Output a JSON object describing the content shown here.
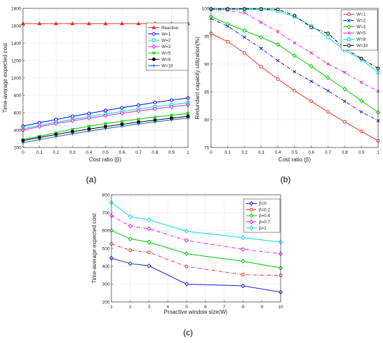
{
  "chart_data": [
    {
      "type": "line",
      "panel_label": "(a)",
      "title": "",
      "xlabel": "Cost ratio (β)",
      "ylabel": "Time-average expected cost",
      "xlim": [
        0,
        1
      ],
      "ylim": [
        200,
        1800
      ],
      "xticks": [
        0,
        0.1,
        0.2,
        0.3,
        0.4,
        0.5,
        0.6,
        0.7,
        0.8,
        0.9,
        1
      ],
      "xtick_labels": [
        "0",
        "0.1",
        "0.2",
        "0.3",
        "0.4",
        "0.5",
        "0.6",
        "0.7",
        "0.8",
        "0.9",
        "1"
      ],
      "yticks": [
        200,
        400,
        600,
        800,
        1000,
        1200,
        1400,
        1600,
        1800
      ],
      "ytick_labels": [
        "200",
        "400",
        "600",
        "800",
        "1000",
        "1200",
        "1400",
        "1600",
        "1800"
      ],
      "grid": true,
      "legend_position": "center-right",
      "x": [
        0,
        0.1,
        0.2,
        0.3,
        0.4,
        0.5,
        0.6,
        0.7,
        0.8,
        0.9,
        1
      ],
      "series": [
        {
          "name": "Reactive",
          "color": "#e8312a",
          "dash": "",
          "marker": "triangle",
          "values": [
            1625,
            1625,
            1625,
            1625,
            1625,
            1625,
            1625,
            1625,
            1625,
            1625,
            1625
          ]
        },
        {
          "name": "W=1",
          "color": "#0000ff",
          "dash": "",
          "marker": "circle",
          "values": [
            445,
            485,
            522,
            558,
            592,
            625,
            657,
            688,
            718,
            745,
            770
          ]
        },
        {
          "name": "W=2",
          "color": "#00d8d8",
          "dash": "",
          "marker": "square",
          "values": [
            415,
            455,
            490,
            523,
            555,
            585,
            614,
            642,
            668,
            692,
            715
          ]
        },
        {
          "name": "W=3",
          "color": "#e020e0",
          "dash": "",
          "marker": "diamond",
          "values": [
            400,
            440,
            475,
            507,
            537,
            566,
            593,
            620,
            645,
            668,
            690
          ]
        },
        {
          "name": "W=5",
          "color": "#00c800",
          "dash": "",
          "marker": "x",
          "values": [
            290,
            330,
            370,
            410,
            445,
            475,
            502,
            527,
            550,
            572,
            592
          ]
        },
        {
          "name": "W=8",
          "color": "#000000",
          "dash": "",
          "marker": "circle-filled",
          "values": [
            280,
            315,
            350,
            382,
            412,
            440,
            467,
            492,
            515,
            537,
            558
          ]
        },
        {
          "name": "W=10",
          "color": "#1060c0",
          "dash": "",
          "marker": "plus",
          "values": [
            255,
            290,
            325,
            357,
            388,
            417,
            444,
            470,
            494,
            517,
            538
          ]
        }
      ]
    },
    {
      "type": "line",
      "panel_label": "(b)",
      "title": "",
      "xlabel": "Cost ratio (β)",
      "ylabel": "Redundant capacity utilization(%)",
      "xlim": [
        0,
        1
      ],
      "ylim": [
        75,
        100
      ],
      "xticks": [
        0,
        0.1,
        0.2,
        0.3,
        0.4,
        0.5,
        0.6,
        0.7,
        0.8,
        0.9,
        1
      ],
      "xtick_labels": [
        "0",
        "0.1",
        "0.2",
        "0.3",
        "0.4",
        "0.5",
        "0.6",
        "0.7",
        "0.8",
        "0.9",
        "1"
      ],
      "yticks": [
        75,
        80,
        85,
        90,
        95,
        100
      ],
      "ytick_labels": [
        "75",
        "80",
        "85",
        "90",
        "95",
        "100"
      ],
      "grid": true,
      "legend_position": "top-right",
      "x": [
        0,
        0.1,
        0.2,
        0.3,
        0.4,
        0.5,
        0.6,
        0.7,
        0.8,
        0.9,
        1
      ],
      "series": [
        {
          "name": "W=1",
          "color": "#e8312a",
          "dash": "",
          "marker": "circle",
          "values": [
            95.5,
            94.0,
            92.0,
            89.5,
            87.3,
            85.2,
            83.3,
            81.4,
            79.6,
            77.9,
            76.2
          ]
        },
        {
          "name": "W=2",
          "color": "#1a1ad0",
          "dash": "5,2,1,2",
          "marker": "x",
          "values": [
            98.2,
            96.8,
            94.8,
            92.8,
            90.6,
            88.6,
            86.9,
            85.2,
            83.3,
            81.4,
            79.8
          ]
        },
        {
          "name": "W=3",
          "color": "#00c800",
          "dash": "",
          "marker": "diamond",
          "values": [
            98.5,
            97.2,
            96.0,
            94.8,
            93.5,
            91.5,
            89.6,
            87.5,
            85.5,
            83.4,
            81.3
          ]
        },
        {
          "name": "W=5",
          "color": "#e020e0",
          "dash": "5,2,1,2",
          "marker": "x",
          "values": [
            99.8,
            99.6,
            99.2,
            97.5,
            95.8,
            93.8,
            92.0,
            90.0,
            88.5,
            86.7,
            85.1
          ]
        },
        {
          "name": "W=8",
          "color": "#00e0e0",
          "dash": "",
          "marker": "square",
          "values": [
            99.8,
            99.8,
            99.8,
            99.8,
            99.5,
            98.5,
            96.8,
            94.8,
            92.5,
            90.8,
            88.5
          ]
        },
        {
          "name": "W=10",
          "color": "#000000",
          "dash": "5,2,1,2",
          "marker": "circle",
          "values": [
            99.9,
            99.9,
            99.9,
            99.9,
            99.8,
            98.7,
            96.6,
            95.5,
            92.8,
            91.0,
            89.2
          ]
        }
      ]
    },
    {
      "type": "line",
      "panel_label": "(c)",
      "title": "",
      "xlabel": "Proactive window size(W)",
      "ylabel": "Time-average expected cost",
      "xlim": [
        1,
        10
      ],
      "ylim": [
        200,
        800
      ],
      "xticks": [
        1,
        2,
        3,
        4,
        5,
        6,
        7,
        8,
        9,
        10
      ],
      "xtick_labels": [
        "1",
        "2",
        "3",
        "4",
        "5",
        "6",
        "7",
        "8",
        "9",
        "10"
      ],
      "yticks": [
        200,
        300,
        400,
        500,
        600,
        700,
        800
      ],
      "ytick_labels": [
        "200",
        "300",
        "400",
        "500",
        "600",
        "700",
        "800"
      ],
      "grid": true,
      "legend_position": "top-right",
      "x": [
        1,
        2,
        3,
        5,
        8,
        10
      ],
      "series": [
        {
          "name": "β=0",
          "color": "#1a1ad0",
          "dash": "",
          "marker": "diamond",
          "values": [
            445,
            415,
            402,
            300,
            290,
            255
          ]
        },
        {
          "name": "β=0.2",
          "color": "#e8312a",
          "dash": "5,2,1,2",
          "marker": "circle",
          "values": [
            525,
            490,
            478,
            398,
            353,
            348
          ]
        },
        {
          "name": "β=0.4",
          "color": "#00c800",
          "dash": "",
          "marker": "diamond",
          "values": [
            600,
            553,
            535,
            470,
            428,
            390
          ]
        },
        {
          "name": "β=0.7",
          "color": "#e020e0",
          "dash": "5,2,1,2",
          "marker": "diamond",
          "values": [
            683,
            625,
            610,
            545,
            495,
            470
          ]
        },
        {
          "name": "β=1",
          "color": "#00d8e8",
          "dash": "",
          "marker": "diamond",
          "values": [
            757,
            678,
            660,
            596,
            560,
            535
          ]
        }
      ]
    }
  ]
}
